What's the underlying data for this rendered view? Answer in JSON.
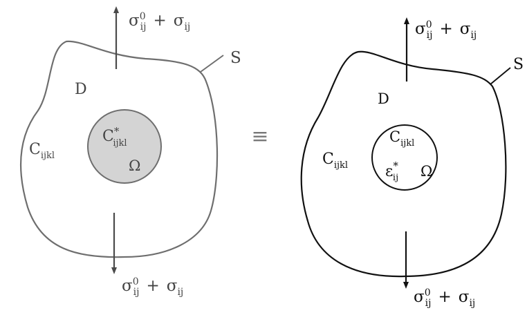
{
  "left_panel": {
    "stress_top": {
      "sigma0": "σ",
      "sub0": "ij",
      "sup0": "0",
      "plus": "+",
      "sigma": "σ",
      "sub": "ij"
    },
    "stress_bottom": {
      "sigma0": "σ",
      "sub0": "ij",
      "sup0": "0",
      "plus": "+",
      "sigma": "σ",
      "sub": "ij"
    },
    "boundary_label": "S",
    "domain_label": "D",
    "matrix_modulus": {
      "base": "C",
      "sub": "ijkl"
    },
    "inclusion_modulus": {
      "base": "C",
      "sup": "*",
      "sub": "ijkl"
    },
    "inclusion_label": "Ω",
    "boundary_color": "#6e6e6e",
    "inclusion_fill": "#d4d4d4"
  },
  "equivalence_symbol": "≡",
  "right_panel": {
    "stress_top": {
      "sigma0": "σ",
      "sub0": "ij",
      "sup0": "0",
      "plus": "+",
      "sigma": "σ",
      "sub": "ij"
    },
    "stress_bottom": {
      "sigma0": "σ",
      "sub0": "ij",
      "sup0": "0",
      "plus": "+",
      "sigma": "σ",
      "sub": "ij"
    },
    "boundary_label": "S",
    "domain_label": "D",
    "matrix_modulus": {
      "base": "C",
      "sub": "ijkl"
    },
    "inclusion_modulus": {
      "base": "C",
      "sub": "ijkl"
    },
    "eigenstrain": {
      "base": "ε",
      "sup": "*",
      "sub": "ij"
    },
    "inclusion_label": "Ω",
    "boundary_color": "#111111"
  }
}
